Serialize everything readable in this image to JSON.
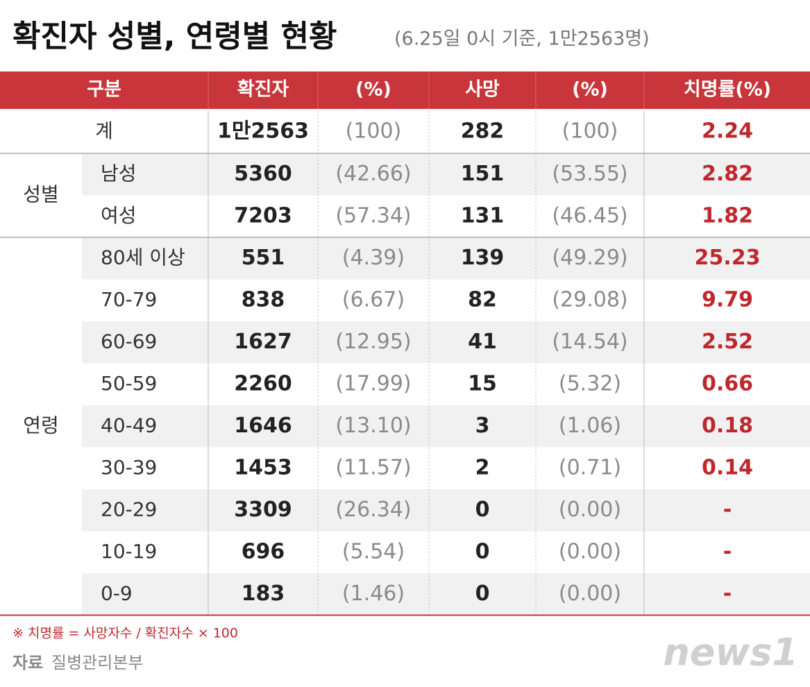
{
  "header": {
    "title": "확진자 성별, 연령별 현황",
    "subtitle": "(6.25일 0시 기준, 1만2563명)"
  },
  "table": {
    "columns": [
      "구분",
      "확진자",
      "(%)",
      "사망",
      "(%)",
      "치명률(%)"
    ],
    "total": {
      "label": "계",
      "cells": [
        "1만2563",
        "(100)",
        "282",
        "(100)",
        "2.24"
      ]
    },
    "groups": [
      {
        "label": "성별",
        "rows": [
          {
            "label": "남성",
            "cells": [
              "5360",
              "(42.66)",
              "151",
              "(53.55)",
              "2.82"
            ]
          },
          {
            "label": "여성",
            "cells": [
              "7203",
              "(57.34)",
              "131",
              "(46.45)",
              "1.82"
            ]
          }
        ]
      },
      {
        "label": "연령",
        "rows": [
          {
            "label": "80세 이상",
            "cells": [
              "551",
              "(4.39)",
              "139",
              "(49.29)",
              "25.23"
            ]
          },
          {
            "label": "70-79",
            "cells": [
              "838",
              "(6.67)",
              "82",
              "(29.08)",
              "9.79"
            ]
          },
          {
            "label": "60-69",
            "cells": [
              "1627",
              "(12.95)",
              "41",
              "(14.54)",
              "2.52"
            ]
          },
          {
            "label": "50-59",
            "cells": [
              "2260",
              "(17.99)",
              "15",
              "(5.32)",
              "0.66"
            ]
          },
          {
            "label": "40-49",
            "cells": [
              "1646",
              "(13.10)",
              "3",
              "(1.06)",
              "0.18"
            ]
          },
          {
            "label": "30-39",
            "cells": [
              "1453",
              "(11.57)",
              "2",
              "(0.71)",
              "0.14"
            ]
          },
          {
            "label": "20-29",
            "cells": [
              "3309",
              "(26.34)",
              "0",
              "(0.00)",
              "-"
            ]
          },
          {
            "label": "10-19",
            "cells": [
              "696",
              "(5.54)",
              "0",
              "(0.00)",
              "-"
            ]
          },
          {
            "label": "0-9",
            "cells": [
              "183",
              "(1.46)",
              "0",
              "(0.00)",
              "-"
            ]
          }
        ]
      }
    ]
  },
  "footnote": "※ 치명률 = 사망자수 / 확진자수 × 100",
  "source": {
    "label": "자료",
    "name": "질병관리본부"
  },
  "logo": "news1"
}
